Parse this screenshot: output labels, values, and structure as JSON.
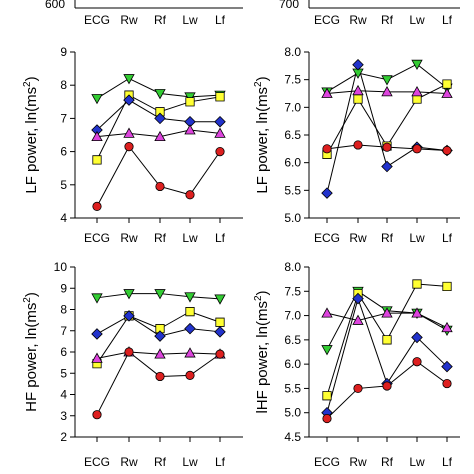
{
  "top_strip": {
    "left_number": "600",
    "right_number": "700",
    "left_categories": [
      "ECG",
      "Rw",
      "Rf",
      "Lw",
      "Lf"
    ],
    "right_categories": [
      "ECG",
      "Rw",
      "Rf",
      "Lw",
      "Lf"
    ]
  },
  "marker_colors": {
    "green": "#33cc33",
    "yellow": "#ffff33",
    "blue": "#2233cc",
    "magenta": "#dd44dd",
    "red": "#dd1f1f"
  },
  "chart_data": [
    {
      "type": "line",
      "panel": "upper-left",
      "categories": [
        "ECG",
        "Rw",
        "Rf",
        "Lw",
        "Lf"
      ],
      "ylabel": "LF power, ln(ms2)",
      "ylabel_main": "LF power, ln(ms",
      "ylabel_sup": "2",
      "ylabel_end": ")",
      "ylim": [
        4,
        9
      ],
      "yticks": [
        "4",
        "5",
        "6",
        "7",
        "8",
        "9"
      ],
      "series": [
        {
          "marker": "triangle-down",
          "color": "green",
          "values": [
            7.6,
            8.2,
            7.75,
            7.65,
            7.7
          ]
        },
        {
          "marker": "square",
          "color": "yellow",
          "values": [
            5.75,
            7.7,
            7.2,
            7.5,
            7.65
          ]
        },
        {
          "marker": "diamond",
          "color": "blue",
          "values": [
            6.65,
            7.55,
            7.0,
            6.9,
            6.9
          ]
        },
        {
          "marker": "triangle-up",
          "color": "magenta",
          "values": [
            6.45,
            6.55,
            6.45,
            6.65,
            6.55
          ]
        },
        {
          "marker": "circle",
          "color": "red",
          "values": [
            4.35,
            6.15,
            4.95,
            4.7,
            6.0
          ]
        }
      ]
    },
    {
      "type": "line",
      "panel": "upper-right",
      "categories": [
        "ECG",
        "Rw",
        "Rf",
        "Lw",
        "Lf"
      ],
      "ylabel": "LF power, ln(ms2)",
      "ylabel_main": "LF power, ln(ms",
      "ylabel_sup": "2",
      "ylabel_end": ")",
      "ylim": [
        5.0,
        8.0
      ],
      "yticks": [
        "5.0",
        "5.5",
        "6.0",
        "6.5",
        "7.0",
        "7.5",
        "8.0"
      ],
      "series": [
        {
          "marker": "triangle-down",
          "color": "green",
          "values": [
            7.28,
            7.62,
            7.5,
            7.78,
            7.35
          ]
        },
        {
          "marker": "square",
          "color": "yellow",
          "values": [
            6.15,
            7.15,
            6.3,
            7.15,
            7.42
          ]
        },
        {
          "marker": "diamond",
          "color": "blue",
          "values": [
            5.45,
            7.77,
            5.93,
            6.28,
            6.22
          ]
        },
        {
          "marker": "triangle-up",
          "color": "magenta",
          "values": [
            7.25,
            7.3,
            7.28,
            7.28,
            7.25
          ]
        },
        {
          "marker": "circle",
          "color": "red",
          "values": [
            6.25,
            6.32,
            6.28,
            6.25,
            6.22
          ]
        }
      ]
    },
    {
      "type": "line",
      "panel": "lower-left",
      "categories": [
        "ECG",
        "Rw",
        "Rf",
        "Lw",
        "Lf"
      ],
      "ylabel": "HF power, ln(ms2)",
      "ylabel_main": "HF power, ln(ms",
      "ylabel_sup": "2",
      "ylabel_end": ")",
      "ylim": [
        2,
        10
      ],
      "yticks": [
        "2",
        "3",
        "4",
        "5",
        "6",
        "7",
        "8",
        "9",
        "10"
      ],
      "series": [
        {
          "marker": "triangle-down",
          "color": "green",
          "values": [
            8.55,
            8.75,
            8.75,
            8.6,
            8.5
          ]
        },
        {
          "marker": "square",
          "color": "yellow",
          "values": [
            5.45,
            7.7,
            7.1,
            7.9,
            7.4
          ]
        },
        {
          "marker": "diamond",
          "color": "blue",
          "values": [
            6.85,
            7.7,
            6.75,
            7.1,
            6.95
          ]
        },
        {
          "marker": "triangle-up",
          "color": "magenta",
          "values": [
            5.7,
            6.0,
            5.9,
            5.95,
            5.9
          ]
        },
        {
          "marker": "circle",
          "color": "red",
          "values": [
            3.05,
            6.0,
            4.85,
            4.9,
            5.9
          ]
        }
      ]
    },
    {
      "type": "line",
      "panel": "lower-right",
      "categories": [
        "ECG",
        "Rw",
        "Rf",
        "Lw",
        "Lf"
      ],
      "ylabel": "lHF power, ln(ms2)",
      "ylabel_main": "lHF power, ln(ms",
      "ylabel_sup": "2",
      "ylabel_end": ")",
      "ylim": [
        4.5,
        8.0
      ],
      "yticks": [
        "4.5",
        "5.0",
        "5.5",
        "6.0",
        "6.5",
        "7.0",
        "7.5",
        "8.0"
      ],
      "series": [
        {
          "marker": "triangle-down",
          "color": "green",
          "values": [
            6.3,
            7.5,
            7.1,
            7.05,
            6.7
          ]
        },
        {
          "marker": "square",
          "color": "yellow",
          "values": [
            5.35,
            7.45,
            6.5,
            7.65,
            7.6
          ]
        },
        {
          "marker": "diamond",
          "color": "blue",
          "values": [
            5.0,
            7.35,
            5.6,
            6.55,
            5.95
          ]
        },
        {
          "marker": "triangle-up",
          "color": "magenta",
          "values": [
            7.05,
            6.9,
            7.05,
            7.05,
            6.75
          ]
        },
        {
          "marker": "circle",
          "color": "red",
          "values": [
            4.88,
            5.5,
            5.55,
            6.05,
            5.6
          ]
        }
      ]
    }
  ]
}
